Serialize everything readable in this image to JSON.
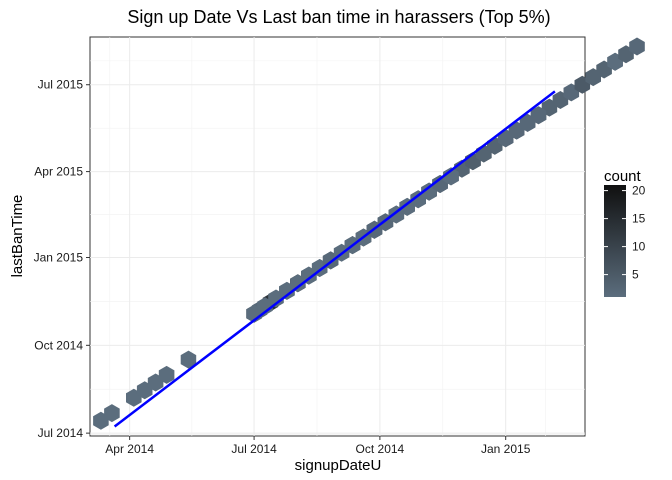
{
  "chart_data": {
    "type": "heatmap",
    "subtype": "hexbin",
    "title": "Sign up Date Vs Last ban time in harassers (Top 5%)",
    "xlabel": "signupDateU",
    "ylabel": "lastBanTime",
    "x_ticks": [
      "Apr 2014",
      "Jul 2014",
      "Oct 2014",
      "Jan 2015"
    ],
    "y_ticks": [
      "Jul 2014",
      "Oct 2014",
      "Jan 2015",
      "Apr 2015",
      "Jul 2015"
    ],
    "x_tick_days": [
      59,
      150,
      242,
      334
    ],
    "y_tick_days": [
      181,
      273,
      365,
      455,
      546
    ],
    "xlim_days": [
      30,
      392
    ],
    "ylim_days": [
      178,
      596
    ],
    "date_origin": "2014-01-01",
    "legend": {
      "title": "count",
      "ticks": [
        5,
        10,
        15,
        20
      ],
      "range": [
        1,
        21
      ],
      "color_low": "#5b6d7d",
      "color_high": "#101010",
      "position": "right"
    },
    "trendline": {
      "color": "#0000ff",
      "x1": 48,
      "y1": 188,
      "x2": 370,
      "y2": 539
    },
    "grid": true,
    "hexbins": [
      [
        38,
        26
      ],
      [
        30,
        11
      ],
      [
        36,
        2
      ],
      [
        31,
        2
      ],
      [
        33,
        13
      ],
      [
        34,
        1
      ],
      [
        40,
        4
      ],
      [
        42,
        1
      ],
      [
        44,
        6
      ],
      [
        44,
        1
      ],
      [
        48,
        14
      ],
      [
        48,
        2
      ],
      [
        50,
        10
      ],
      [
        52,
        3
      ],
      [
        52,
        1
      ],
      [
        54,
        3
      ],
      [
        56,
        5
      ],
      [
        58,
        2
      ],
      [
        60,
        3
      ],
      [
        62,
        5
      ],
      [
        62,
        2
      ],
      [
        64,
        8
      ],
      [
        64,
        3
      ],
      [
        66,
        5
      ],
      [
        68,
        3
      ],
      [
        70,
        6
      ],
      [
        70,
        2
      ],
      [
        72,
        6
      ],
      [
        74,
        4
      ],
      [
        76,
        5
      ],
      [
        76,
        2
      ],
      [
        78,
        4
      ],
      [
        78,
        2
      ],
      [
        80,
        3
      ],
      [
        82,
        2
      ],
      [
        84,
        3
      ],
      [
        86,
        3
      ],
      [
        88,
        2
      ],
      [
        90,
        5
      ],
      [
        92,
        3
      ],
      [
        94,
        3
      ],
      [
        96,
        2
      ],
      [
        96,
        1
      ],
      [
        98,
        3
      ],
      [
        100,
        2
      ],
      [
        70,
        4
      ],
      [
        72,
        3
      ],
      [
        74,
        3
      ],
      [
        76,
        2
      ],
      [
        78,
        2
      ],
      [
        80,
        2
      ],
      [
        82,
        2
      ],
      [
        52,
        1
      ],
      [
        54,
        2
      ],
      [
        56,
        1
      ],
      [
        58,
        1
      ],
      [
        60,
        1
      ],
      [
        62,
        1
      ],
      [
        64,
        2
      ],
      [
        66,
        1
      ],
      [
        40,
        1
      ],
      [
        42,
        1
      ],
      [
        44,
        2
      ],
      [
        46,
        1
      ],
      [
        48,
        1
      ],
      [
        50,
        1
      ],
      [
        52,
        2
      ],
      [
        30,
        1
      ],
      [
        32,
        1
      ],
      [
        36,
        1
      ],
      [
        38,
        1
      ],
      [
        40,
        1
      ],
      [
        8,
        1
      ],
      [
        10,
        1
      ],
      [
        12,
        1
      ],
      [
        14,
        1
      ],
      [
        18,
        1
      ],
      [
        2,
        1
      ],
      [
        4,
        1
      ]
    ]
  }
}
